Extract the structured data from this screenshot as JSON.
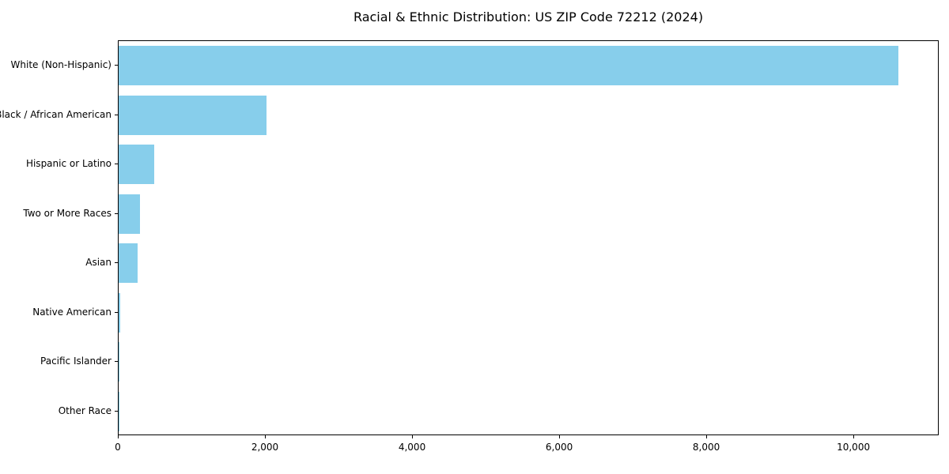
{
  "chart_data": {
    "type": "bar",
    "orientation": "horizontal",
    "title": "Racial & Ethnic Distribution: US ZIP Code 72212 (2024)",
    "xlabel": "",
    "ylabel": "",
    "categories": [
      "White (Non-Hispanic)",
      "Black / African American",
      "Hispanic or Latino",
      "Two or More Races",
      "Asian",
      "Native American",
      "Pacific Islander",
      "Other Race"
    ],
    "values": [
      10600,
      2010,
      480,
      290,
      260,
      20,
      10,
      5
    ],
    "xlim": [
      0,
      11160
    ],
    "xticks": {
      "values": [
        0,
        2000,
        4000,
        6000,
        8000,
        10000
      ],
      "labels": [
        "0",
        "2,000",
        "4,000",
        "6,000",
        "8,000",
        "10,000"
      ]
    },
    "bar_color": "#87CEEB",
    "background_color": "#ffffff",
    "axis_color": "#000000",
    "grid": false,
    "legend": null
  }
}
